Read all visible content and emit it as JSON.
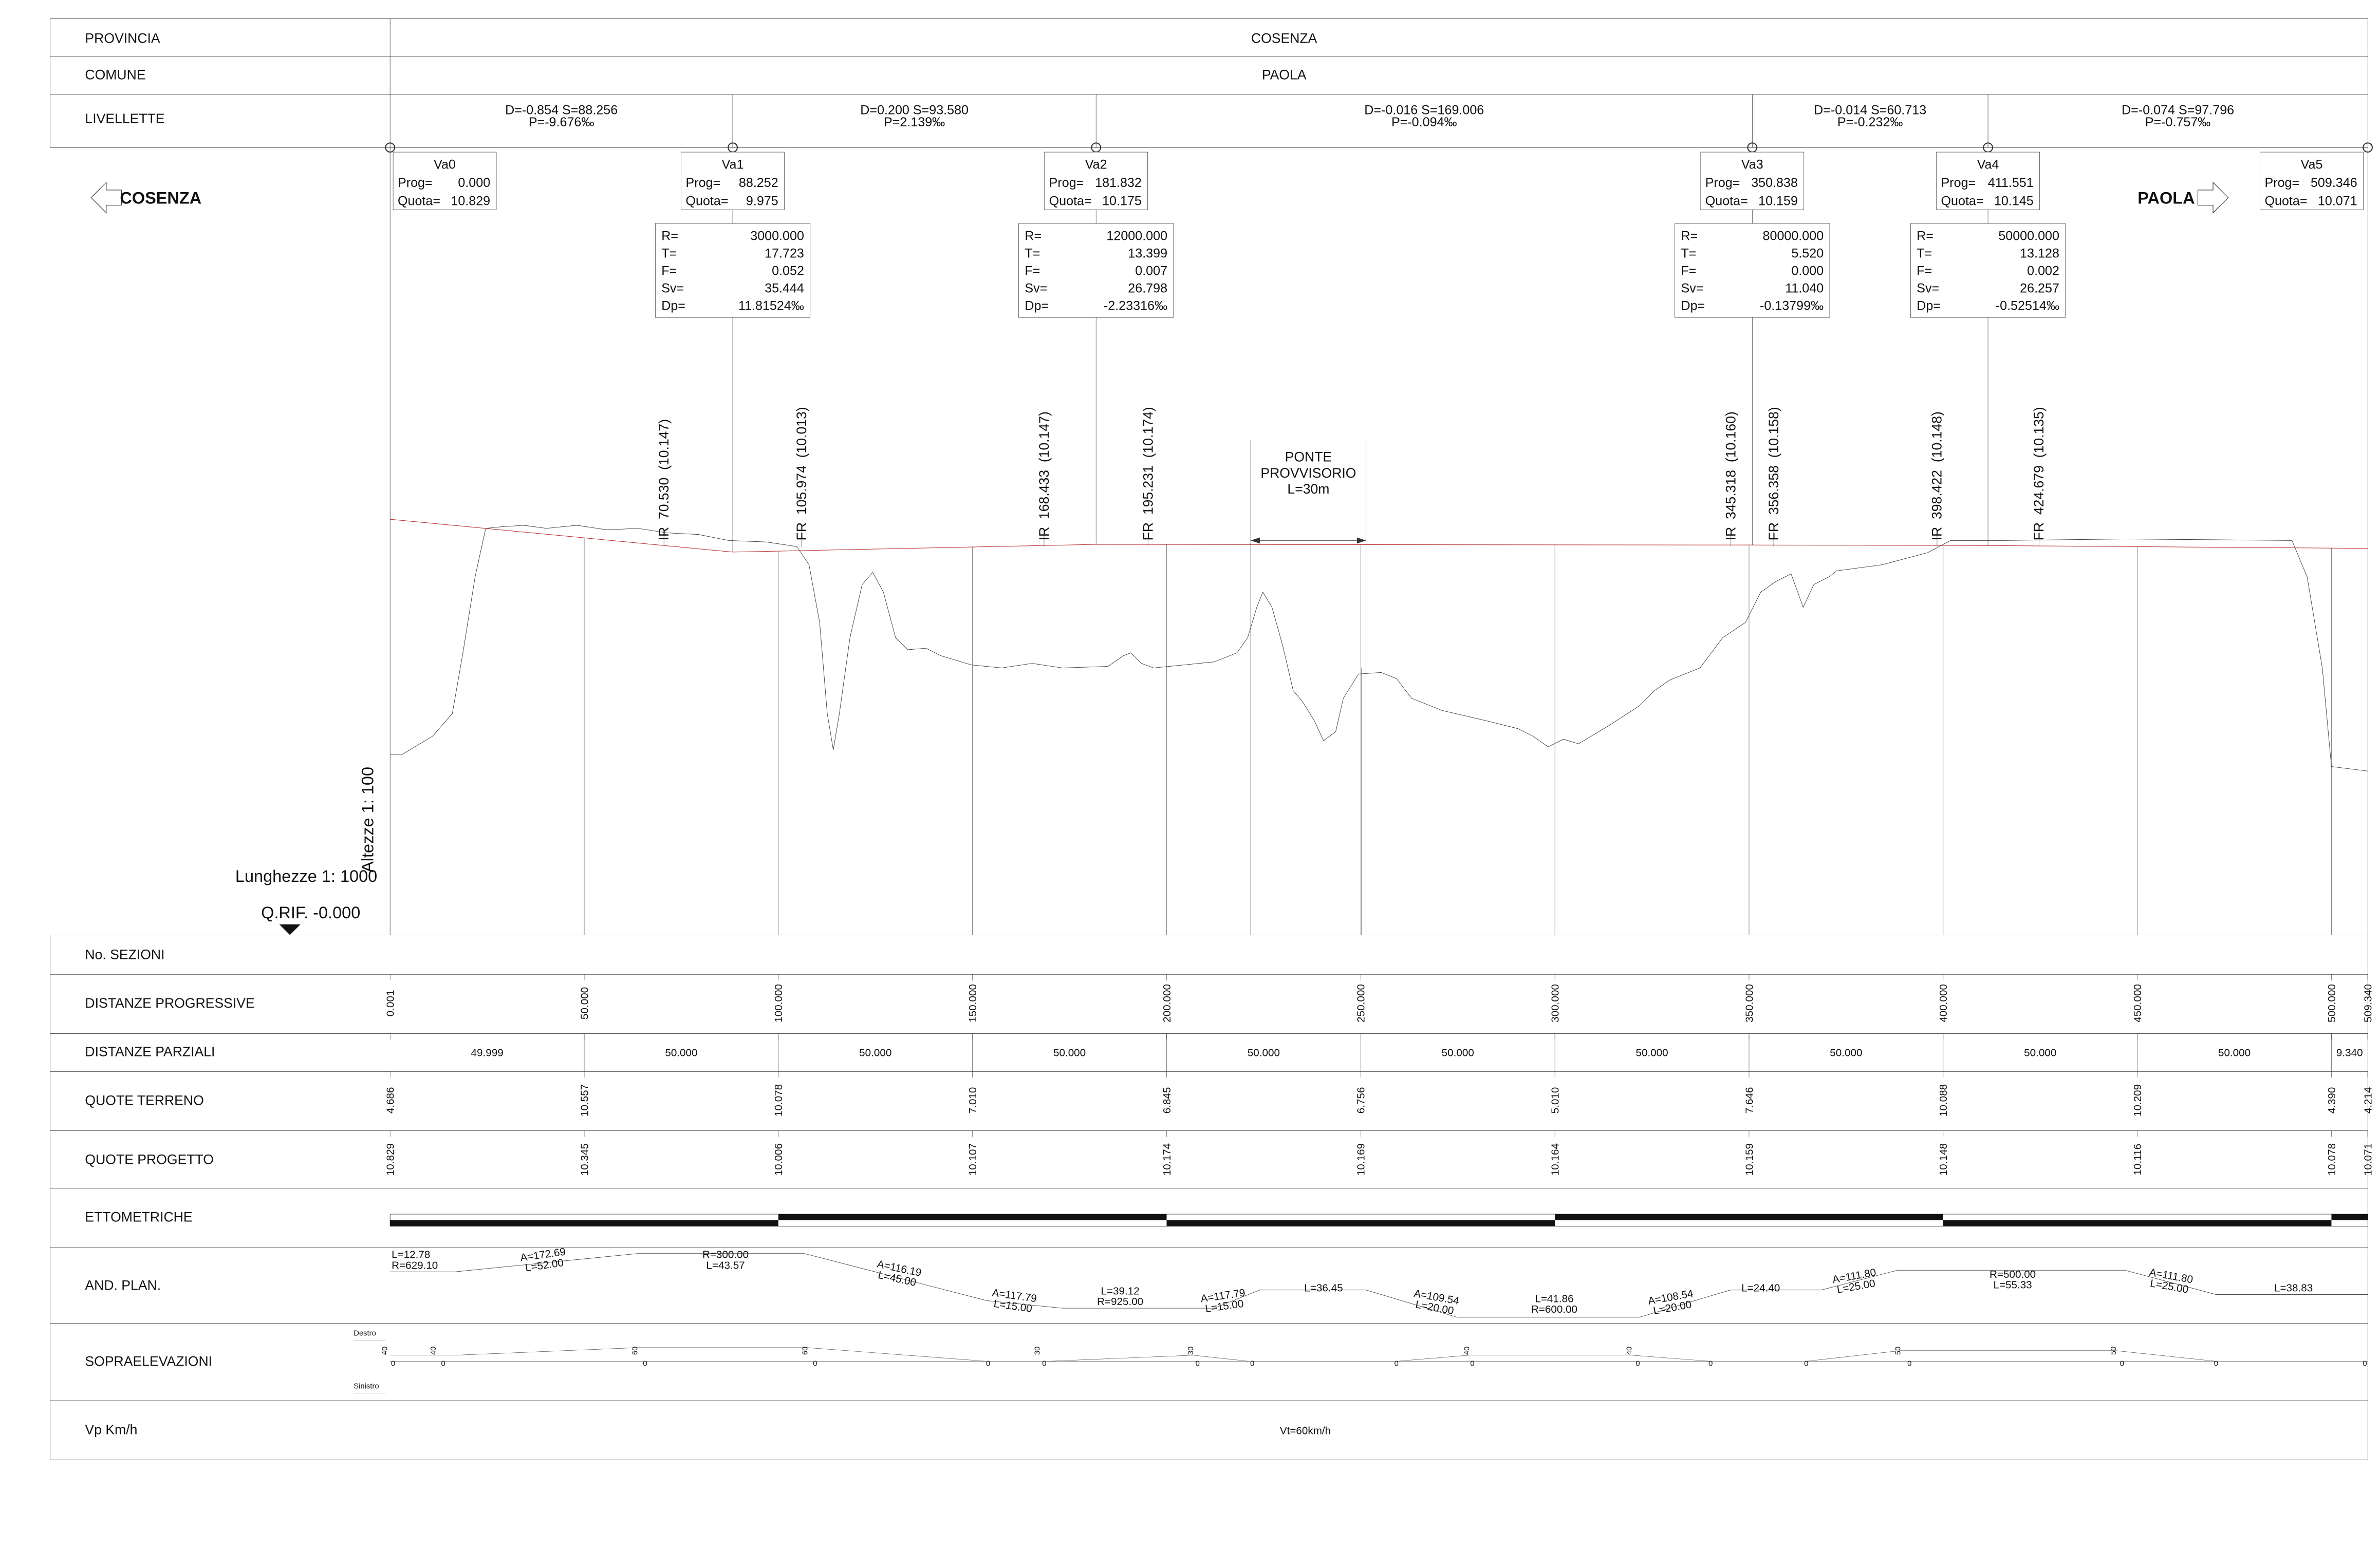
{
  "header": {
    "provincia": {
      "label": "PROVINCIA",
      "value": "COSENZA"
    },
    "comune": {
      "label": "COMUNE",
      "value": "PAOLA"
    }
  },
  "livellette": {
    "label": "LIVELLETTE",
    "segments": [
      {
        "ds": "D=-0.854 S=88.256",
        "p": "P=-9.676‰"
      },
      {
        "ds": "D=0.200 S=93.580",
        "p": "P=2.139‰"
      },
      {
        "ds": "D=-0.016 S=169.006",
        "p": "P=-0.094‰"
      },
      {
        "ds": "D=-0.014 S=60.713",
        "p": "P=-0.232‰"
      },
      {
        "ds": "D=-0.074 S=97.796",
        "p": "P=-0.757‰"
      }
    ]
  },
  "directions": {
    "left": "COSENZA",
    "right": "PAOLA"
  },
  "vertex_keys": {
    "prog": "Prog=",
    "quota": "Quota="
  },
  "curve_keys": [
    "R=",
    "T=",
    "F=",
    "Sv=",
    "Dp="
  ],
  "vertices": [
    {
      "name": "Va0",
      "prog": "0.000",
      "quota": "10.829"
    },
    {
      "name": "Va1",
      "prog": "88.252",
      "quota": "9.975",
      "curve": [
        "3000.000",
        "17.723",
        "0.052",
        "35.444",
        "11.81524‰"
      ]
    },
    {
      "name": "Va2",
      "prog": "181.832",
      "quota": "10.175",
      "curve": [
        "12000.000",
        "13.399",
        "0.007",
        "26.798",
        "-2.23316‰"
      ]
    },
    {
      "name": "Va3",
      "prog": "350.838",
      "quota": "10.159",
      "curve": [
        "80000.000",
        "5.520",
        "0.000",
        "11.040",
        "-0.13799‰"
      ]
    },
    {
      "name": "Va4",
      "prog": "411.551",
      "quota": "10.145",
      "curve": [
        "50000.000",
        "13.128",
        "0.002",
        "26.257",
        "-0.52514‰"
      ]
    },
    {
      "name": "Va5",
      "prog": "509.346",
      "quota": "10.071"
    }
  ],
  "markers": [
    {
      "kind": "IR",
      "prog": "70.530",
      "quota": "(10.147)"
    },
    {
      "kind": "FR",
      "prog": "105.974",
      "quota": "(10.013)"
    },
    {
      "kind": "IR",
      "prog": "168.433",
      "quota": "(10.147)"
    },
    {
      "kind": "FR",
      "prog": "195.231",
      "quota": "(10.174)"
    },
    {
      "kind": "IR",
      "prog": "345.318",
      "quota": "(10.160)"
    },
    {
      "kind": "FR",
      "prog": "356.358",
      "quota": "(10.158)"
    },
    {
      "kind": "IR",
      "prog": "398.422",
      "quota": "(10.148)"
    },
    {
      "kind": "FR",
      "prog": "424.679",
      "quota": "(10.135)"
    }
  ],
  "bridge": {
    "lines": [
      "PONTE",
      "PROVVISORIO",
      "L=30m"
    ]
  },
  "scales": {
    "vertical": "Altezze 1: 100",
    "horizontal": "Lunghezze 1: 1000",
    "reference": "Q.RIF. -0.000"
  },
  "table": {
    "sections": {
      "label": "No. SEZIONI"
    },
    "progressive": {
      "label": "DISTANZE PROGRESSIVE",
      "values": [
        "0.001",
        "50.000",
        "100.000",
        "150.000",
        "200.000",
        "250.000",
        "300.000",
        "350.000",
        "400.000",
        "450.000",
        "500.000",
        "509.340"
      ]
    },
    "partial": {
      "label": "DISTANZE PARZIALI",
      "values": [
        "49.999",
        "50.000",
        "50.000",
        "50.000",
        "50.000",
        "50.000",
        "50.000",
        "50.000",
        "50.000",
        "50.000",
        "9.340"
      ]
    },
    "terrain": {
      "label": "QUOTE TERRENO",
      "values": [
        "4.686",
        "10.557",
        "10.078",
        "7.010",
        "6.845",
        "6.756",
        "5.010",
        "7.646",
        "10.088",
        "10.209",
        "4.390",
        "4.214"
      ]
    },
    "design": {
      "label": "QUOTE PROGETTO",
      "values": [
        "10.829",
        "10.345",
        "10.006",
        "10.107",
        "10.174",
        "10.169",
        "10.164",
        "10.159",
        "10.148",
        "10.116",
        "10.078",
        "10.071"
      ]
    },
    "ettometriche": {
      "label": "ETTOMETRICHE"
    },
    "alignment": {
      "label": "AND. PLAN.",
      "elements": [
        [
          "L=12.78",
          "R=629.10"
        ],
        [
          "A=172.69",
          "L=52.00"
        ],
        [
          "R=300.00",
          "L=43.57"
        ],
        [
          "A=116.19",
          "L=45.00"
        ],
        [
          "A=117.79",
          "L=15.00"
        ],
        [
          "L=39.12",
          "R=925.00"
        ],
        [
          "A=117.79",
          "L=15.00"
        ],
        [
          "L=36.45"
        ],
        [
          "A=109.54",
          "L=20.00"
        ],
        [
          "L=41.86",
          "R=600.00"
        ],
        [
          "A=108.54",
          "L=20.00"
        ],
        [
          "L=24.40"
        ],
        [
          "A=111.80",
          "L=25.00"
        ],
        [
          "R=500.00",
          "L=55.33"
        ],
        [
          "A=111.80",
          "L=25.00"
        ],
        [
          "L=38.83"
        ]
      ]
    },
    "superelevation": {
      "label": "SOPRAELEVAZIONI",
      "right": "Destro",
      "left": "Sinistro",
      "values": [
        "40",
        "40",
        "60",
        "60",
        "30",
        "30",
        "40",
        "40",
        "50",
        "50"
      ],
      "zeros": [
        "0",
        "0",
        "0",
        "0",
        "0",
        "0",
        "0",
        "0",
        "0",
        "0",
        "0",
        "0",
        "0",
        "0",
        "0",
        "0",
        "0"
      ]
    },
    "speed": {
      "label": "Vp Km/h",
      "value": "Vt=60km/h"
    }
  }
}
